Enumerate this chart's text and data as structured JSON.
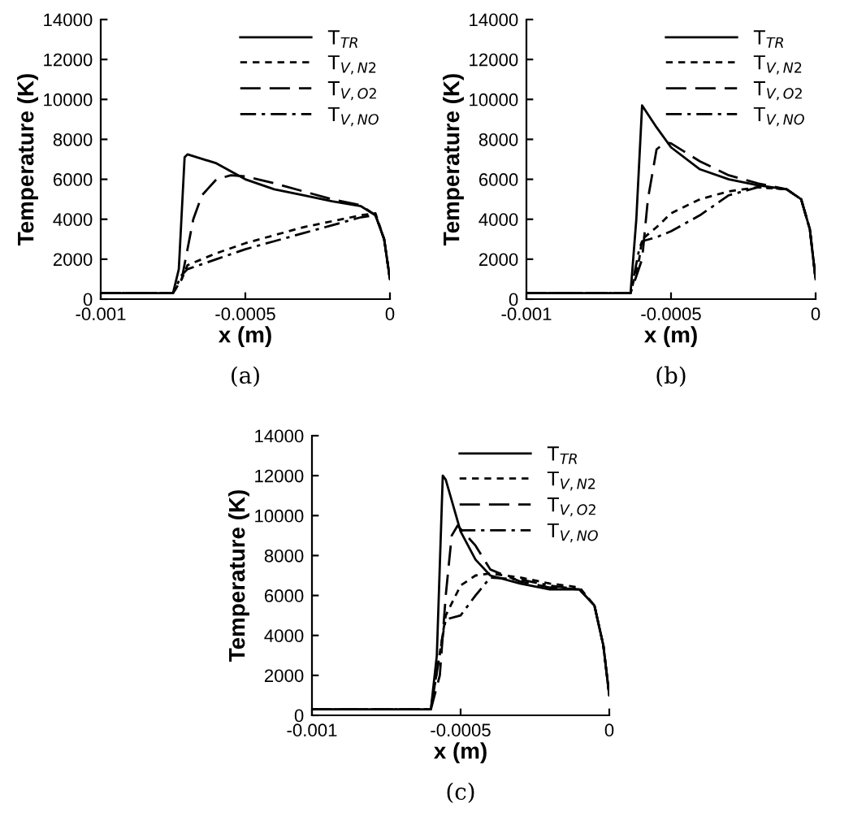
{
  "chart_data": [
    {
      "type": "line",
      "xlabel": "x (m)",
      "ylabel": "Temperature (K)",
      "annotations": [
        "(a)"
      ],
      "xlim": [
        -0.001,
        0
      ],
      "xticks": [
        -0.001,
        -0.0005,
        0
      ],
      "ylim": [
        0,
        14000
      ],
      "yticks": [
        0,
        2000,
        4000,
        6000,
        8000,
        10000,
        12000,
        14000
      ],
      "grid": false,
      "legend": "top right",
      "marker": "none",
      "series": [
        {
          "name": "T$_{TR}$",
          "color": "#000000",
          "line_style": "solid",
          "x": [
            -0.001,
            -0.00075,
            -0.00073,
            -0.00071,
            -0.0007,
            -0.0006,
            -0.0005,
            -0.0004,
            -0.0003,
            -0.0002,
            -0.0001,
            -5e-05,
            -2e-05,
            0
          ],
          "values": [
            300,
            300,
            1500,
            7100,
            7250,
            6800,
            6000,
            5500,
            5200,
            4900,
            4650,
            4200,
            3000,
            1000
          ]
        },
        {
          "name": "T$_{V,N2}$",
          "color": "#000000",
          "line_style": "dotted",
          "x": [
            -0.001,
            -0.00075,
            -0.00072,
            -0.0007,
            -0.0006,
            -0.0005,
            -0.0004,
            -0.0003,
            -0.0002,
            -0.0001,
            -5e-05,
            -2e-05,
            0
          ],
          "values": [
            300,
            300,
            1000,
            1700,
            2300,
            2800,
            3200,
            3600,
            3900,
            4200,
            4300,
            3000,
            1000
          ]
        },
        {
          "name": "T$_{V,O2}$",
          "color": "#000000",
          "line_style": "dashed",
          "x": [
            -0.001,
            -0.00075,
            -0.00072,
            -0.0007,
            -0.00068,
            -0.00065,
            -0.0006,
            -0.00055,
            -0.0005,
            -0.0004,
            -0.0003,
            -0.0002,
            -0.0001,
            -5e-05,
            -2e-05,
            0
          ],
          "values": [
            300,
            300,
            1000,
            2500,
            4000,
            5200,
            6000,
            6200,
            6150,
            5800,
            5400,
            5000,
            4700,
            4200,
            3000,
            1000
          ]
        },
        {
          "name": "T$_{V,NO}$",
          "color": "#000000",
          "line_style": "dashdot",
          "x": [
            -0.001,
            -0.00075,
            -0.00072,
            -0.0007,
            -0.0006,
            -0.0005,
            -0.0004,
            -0.0003,
            -0.0002,
            -0.0001,
            -5e-05,
            -2e-05,
            0
          ],
          "values": [
            300,
            300,
            1200,
            1500,
            2000,
            2500,
            2900,
            3300,
            3700,
            4100,
            4200,
            3000,
            1000
          ]
        }
      ]
    },
    {
      "type": "line",
      "xlabel": "x (m)",
      "ylabel": "Temperature (K)",
      "annotations": [
        "(b)"
      ],
      "xlim": [
        -0.001,
        0
      ],
      "xticks": [
        -0.001,
        -0.0005,
        0
      ],
      "ylim": [
        0,
        14000
      ],
      "yticks": [
        0,
        2000,
        4000,
        6000,
        8000,
        10000,
        12000,
        14000
      ],
      "grid": false,
      "legend": "top right",
      "marker": "none",
      "series": [
        {
          "name": "T$_{TR}$",
          "color": "#000000",
          "line_style": "solid",
          "x": [
            -0.001,
            -0.00064,
            -0.00062,
            -0.0006,
            -0.00055,
            -0.0005,
            -0.0004,
            -0.0003,
            -0.0002,
            -0.0001,
            -5e-05,
            -2e-05,
            0
          ],
          "values": [
            300,
            300,
            4000,
            9700,
            8600,
            7600,
            6500,
            6000,
            5700,
            5500,
            5000,
            3500,
            1000
          ]
        },
        {
          "name": "T$_{V,N2}$",
          "color": "#000000",
          "line_style": "dotted",
          "x": [
            -0.001,
            -0.00064,
            -0.00061,
            -0.0006,
            -0.00055,
            -0.0005,
            -0.0004,
            -0.0003,
            -0.0002,
            -0.0001,
            -5e-05,
            -2e-05,
            0
          ],
          "values": [
            300,
            300,
            2000,
            3000,
            3600,
            4300,
            5000,
            5400,
            5600,
            5500,
            5000,
            3500,
            1000
          ]
        },
        {
          "name": "T$_{V,O2}$",
          "color": "#000000",
          "line_style": "dashed",
          "x": [
            -0.001,
            -0.00064,
            -0.0006,
            -0.00058,
            -0.00055,
            -0.00052,
            -0.0005,
            -0.0004,
            -0.0003,
            -0.0002,
            -0.0001,
            -5e-05,
            -2e-05,
            0
          ],
          "values": [
            300,
            300,
            2000,
            5000,
            7500,
            7850,
            7800,
            6900,
            6200,
            5800,
            5500,
            5000,
            3500,
            1000
          ]
        },
        {
          "name": "T$_{V,NO}$",
          "color": "#000000",
          "line_style": "dashdot",
          "x": [
            -0.001,
            -0.00064,
            -0.00061,
            -0.0006,
            -0.00055,
            -0.0005,
            -0.0004,
            -0.0003,
            -0.0002,
            -0.0001,
            -5e-05,
            -2e-05,
            0
          ],
          "values": [
            300,
            300,
            2500,
            2900,
            3100,
            3400,
            4200,
            5200,
            5600,
            5500,
            5000,
            3500,
            1000
          ]
        }
      ]
    },
    {
      "type": "line",
      "xlabel": "x (m)",
      "ylabel": "Temperature (K)",
      "annotations": [
        "(c)"
      ],
      "xlim": [
        -0.001,
        0
      ],
      "xticks": [
        -0.001,
        -0.0005,
        0
      ],
      "ylim": [
        0,
        14000
      ],
      "yticks": [
        0,
        2000,
        4000,
        6000,
        8000,
        10000,
        12000,
        14000
      ],
      "grid": false,
      "legend": "top right",
      "marker": "none",
      "series": [
        {
          "name": "T$_{TR}$",
          "color": "#000000",
          "line_style": "solid",
          "x": [
            -0.001,
            -0.0006,
            -0.00058,
            -0.00056,
            -0.00055,
            -0.0005,
            -0.00045,
            -0.0004,
            -0.0003,
            -0.0002,
            -0.0001,
            -5e-05,
            -2e-05,
            0
          ],
          "values": [
            300,
            300,
            3000,
            12000,
            11800,
            9200,
            7800,
            7000,
            6600,
            6300,
            6300,
            5500,
            3500,
            1000
          ]
        },
        {
          "name": "T$_{V,N2}$",
          "color": "#000000",
          "line_style": "dotted",
          "x": [
            -0.001,
            -0.0006,
            -0.00055,
            -0.0005,
            -0.00045,
            -0.0004,
            -0.0003,
            -0.0002,
            -0.0001,
            -5e-05,
            -2e-05,
            0
          ],
          "values": [
            300,
            300,
            5000,
            6500,
            7000,
            7100,
            6900,
            6600,
            6400,
            5500,
            3500,
            1000
          ]
        },
        {
          "name": "T$_{V,O2}$",
          "color": "#000000",
          "line_style": "dashed",
          "x": [
            -0.001,
            -0.0006,
            -0.00057,
            -0.00055,
            -0.00053,
            -0.00051,
            -0.00045,
            -0.0004,
            -0.0003,
            -0.0002,
            -0.0001,
            -5e-05,
            -2e-05,
            0
          ],
          "values": [
            300,
            300,
            2000,
            6000,
            9000,
            9500,
            8500,
            7300,
            6700,
            6400,
            6300,
            5500,
            3500,
            1000
          ]
        },
        {
          "name": "T$_{V,NO}$",
          "color": "#000000",
          "line_style": "dashdot",
          "x": [
            -0.001,
            -0.0006,
            -0.00056,
            -0.00055,
            -0.0005,
            -0.00045,
            -0.0004,
            -0.0003,
            -0.0002,
            -0.0001,
            -5e-05,
            -2e-05,
            0
          ],
          "values": [
            300,
            300,
            4000,
            4800,
            5000,
            6000,
            6900,
            6800,
            6500,
            6300,
            5500,
            3500,
            1000
          ]
        }
      ]
    }
  ]
}
